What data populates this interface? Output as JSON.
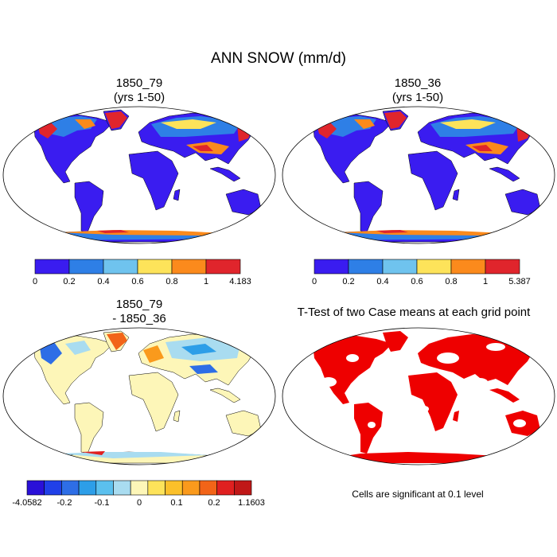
{
  "figure": {
    "title": "ANN SNOW (mm/d)"
  },
  "panels": [
    {
      "title_line1": "1850_79",
      "title_line2": "(yrs 1-50)",
      "colorbar": {
        "colors": [
          "#3a1cf0",
          "#2e7fe6",
          "#6fc3ee",
          "#fde35a",
          "#fb8a1c",
          "#e0252c"
        ],
        "labels": [
          "0",
          "0.2",
          "0.4",
          "0.6",
          "0.8",
          "1",
          "4.183"
        ]
      }
    },
    {
      "title_line1": "1850_36",
      "title_line2": "(yrs 1-50)",
      "colorbar": {
        "colors": [
          "#3a1cf0",
          "#2e7fe6",
          "#6fc3ee",
          "#fde35a",
          "#fb8a1c",
          "#e0252c"
        ],
        "labels": [
          "0",
          "0.2",
          "0.4",
          "0.6",
          "0.8",
          "1",
          "5.387"
        ]
      }
    },
    {
      "title_line1": "1850_79",
      "title_line2": "- 1850_36",
      "colorbar": {
        "colors": [
          "#2a10d8",
          "#2040e8",
          "#2e6ee6",
          "#2d9ee8",
          "#5bc0ee",
          "#a9dcf0",
          "#fdf6b8",
          "#fde35a",
          "#fbc02a",
          "#fa9a1c",
          "#f26418",
          "#e02020",
          "#c01818"
        ],
        "labels": [
          "-4.0582",
          "-0.2",
          "-0.1",
          "0",
          "0.1",
          "0.2",
          "1.1603"
        ]
      }
    },
    {
      "title_line1": "T-Test of two Case means at each grid point",
      "note": "Cells are significant at 0.1 level"
    }
  ],
  "map_colors": {
    "snow_low": "#3a1cf0",
    "snow_mid": "#2e7fe6",
    "snow_light": "#6fc3ee",
    "snow_yellow": "#fde35a",
    "snow_orange": "#fb8a1c",
    "snow_red": "#e0252c",
    "diff_base": "#fdf6b8",
    "ttest_sig": "#ee0000"
  }
}
